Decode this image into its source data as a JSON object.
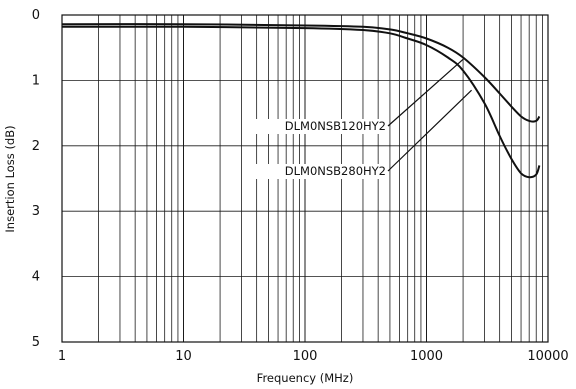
{
  "chart_data": {
    "type": "line",
    "xlabel": "Frequency (MHz)",
    "ylabel": "Insertion Loss (dB)",
    "xscale": "log",
    "xlim": [
      1,
      10000
    ],
    "ylim": [
      0,
      5
    ],
    "y_inverted": true,
    "grid": true,
    "legend": "none",
    "x_ticks": [
      "1",
      "10",
      "100",
      "1000",
      "10000"
    ],
    "y_ticks": [
      "0",
      "1",
      "2",
      "3",
      "4",
      "5"
    ],
    "series": [
      {
        "name": "DLM0NSB120HY2",
        "x": [
          1,
          10,
          100,
          300,
          500,
          700,
          1000,
          1500,
          2000,
          3000,
          4000,
          5000,
          6000,
          7000,
          8000,
          8500
        ],
        "y": [
          0.14,
          0.14,
          0.16,
          0.18,
          0.22,
          0.28,
          0.36,
          0.5,
          0.65,
          0.95,
          1.2,
          1.4,
          1.55,
          1.62,
          1.62,
          1.55
        ]
      },
      {
        "name": "DLM0NSB280HY2",
        "x": [
          1,
          10,
          100,
          300,
          500,
          700,
          1000,
          1500,
          2000,
          3000,
          4000,
          5000,
          6000,
          7000,
          8000,
          8500
        ],
        "y": [
          0.18,
          0.18,
          0.2,
          0.23,
          0.28,
          0.36,
          0.46,
          0.65,
          0.85,
          1.35,
          1.85,
          2.2,
          2.42,
          2.48,
          2.44,
          2.3
        ]
      }
    ]
  },
  "colors": {
    "line": "#111111",
    "grid": "#1a1a1a",
    "background": "#ffffff"
  }
}
